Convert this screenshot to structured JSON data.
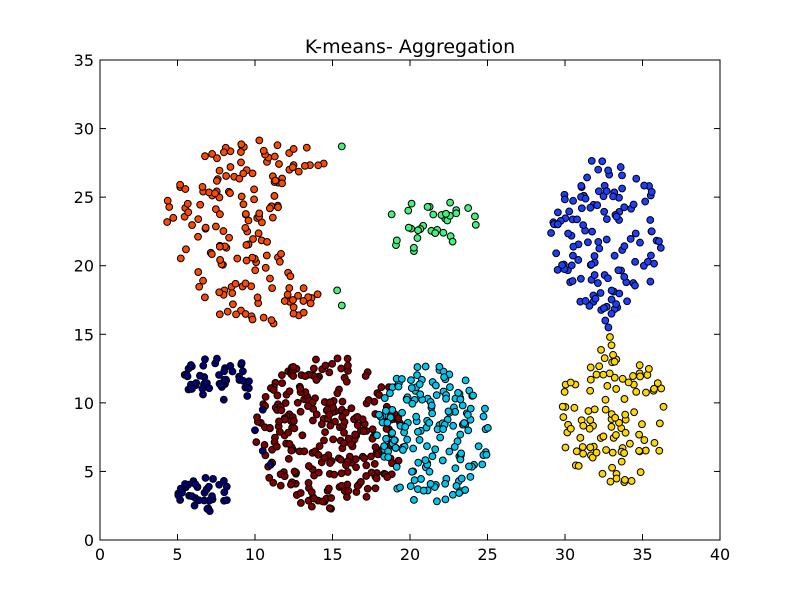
{
  "chart_data": {
    "type": "scatter",
    "title": "K-means- Aggregation",
    "xlabel": "",
    "ylabel": "",
    "xlim": [
      0,
      40
    ],
    "ylim": [
      0,
      35
    ],
    "x_ticks": [
      0,
      5,
      10,
      15,
      20,
      25,
      30,
      35,
      40
    ],
    "y_ticks": [
      0,
      5,
      10,
      15,
      20,
      25,
      30,
      35
    ],
    "grid": false,
    "legend": "none",
    "clusters": [
      {
        "color": "#fe4a00",
        "shape": "crescent",
        "center": [
          10.5,
          22.5
        ],
        "rx": 6.5,
        "ry": 6.8,
        "notch": {
          "x": 16.5,
          "y": 22.5,
          "r": 5.0
        },
        "count": 170
      },
      {
        "color": "#42f27a",
        "shape": "ellipse",
        "center": [
          21.5,
          22.8
        ],
        "rx": 3.3,
        "ry": 2.0,
        "count": 34
      },
      {
        "color": "#1c3fff",
        "shape": "ellipse",
        "center": [
          32.7,
          22.3
        ],
        "rx": 3.6,
        "ry": 5.6,
        "count": 127
      },
      {
        "color": "#ffd700",
        "shape": "ellipse",
        "center": [
          33.1,
          9.0
        ],
        "rx": 3.5,
        "ry": 5.0,
        "count": 102
      },
      {
        "color": "#800000",
        "shape": "ellipse",
        "center": [
          14.8,
          7.8
        ],
        "rx": 4.8,
        "ry": 5.6,
        "count": 273
      },
      {
        "color": "#00c6ee",
        "shape": "ellipse",
        "center": [
          21.5,
          7.8
        ],
        "rx": 3.8,
        "ry": 5.2,
        "count": 170
      },
      {
        "color": "#000078",
        "shape": "ellipse",
        "center": [
          7.6,
          11.8
        ],
        "rx": 2.3,
        "ry": 1.6,
        "count": 45
      },
      {
        "color": "#000078",
        "shape": "ellipse",
        "center": [
          6.7,
          3.4
        ],
        "rx": 1.8,
        "ry": 1.4,
        "count": 34
      }
    ],
    "bridge_points": [
      {
        "color": "#1c3fff",
        "points": [
          [
            33.0,
            16.5
          ],
          [
            32.8,
            15.5
          ],
          [
            33.3,
            17.2
          ],
          [
            32.6,
            16.0
          ]
        ]
      },
      {
        "color": "#ffd700",
        "points": [
          [
            33.0,
            14.2
          ],
          [
            33.1,
            13.5
          ],
          [
            32.9,
            14.8
          ],
          [
            33.2,
            13.0
          ]
        ]
      },
      {
        "color": "#42f27a",
        "points": [
          [
            15.6,
            28.7
          ],
          [
            15.3,
            18.2
          ],
          [
            15.6,
            17.1
          ]
        ]
      },
      {
        "color": "#000078",
        "points": [
          [
            9.5,
            10.5
          ],
          [
            10.5,
            9.5
          ],
          [
            10.0,
            8.0
          ],
          [
            10.5,
            6.5
          ],
          [
            11.0,
            5.5
          ]
        ]
      }
    ]
  }
}
